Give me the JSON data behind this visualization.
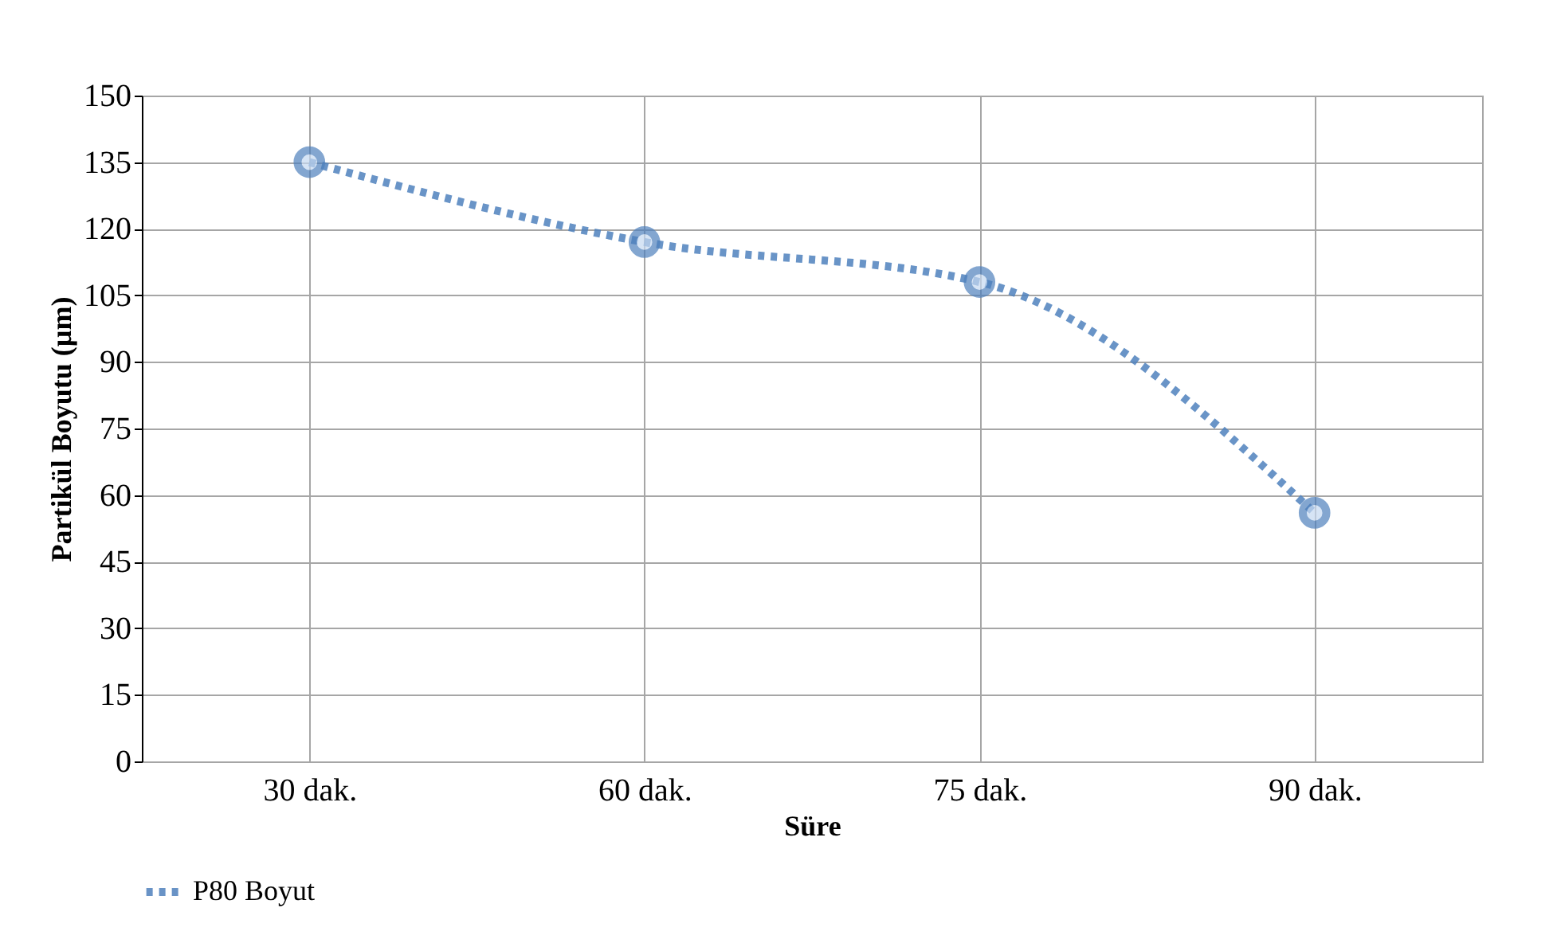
{
  "chart_data": {
    "type": "line",
    "xlabel": "Süre",
    "ylabel": "Partikül Boyutu (µm)",
    "categories": [
      "30 dak.",
      "60 dak.",
      "75 dak.",
      "90 dak."
    ],
    "series": [
      {
        "name": "P80 Boyut",
        "color": "#4f81bd",
        "values": [
          135,
          117,
          108,
          56
        ]
      }
    ],
    "ylim": [
      0,
      150
    ],
    "yticks": [
      0,
      15,
      30,
      45,
      60,
      75,
      90,
      105,
      120,
      135,
      150
    ],
    "grid": true,
    "legend": "bottom",
    "marker": "circle",
    "line_style": "dotted"
  }
}
